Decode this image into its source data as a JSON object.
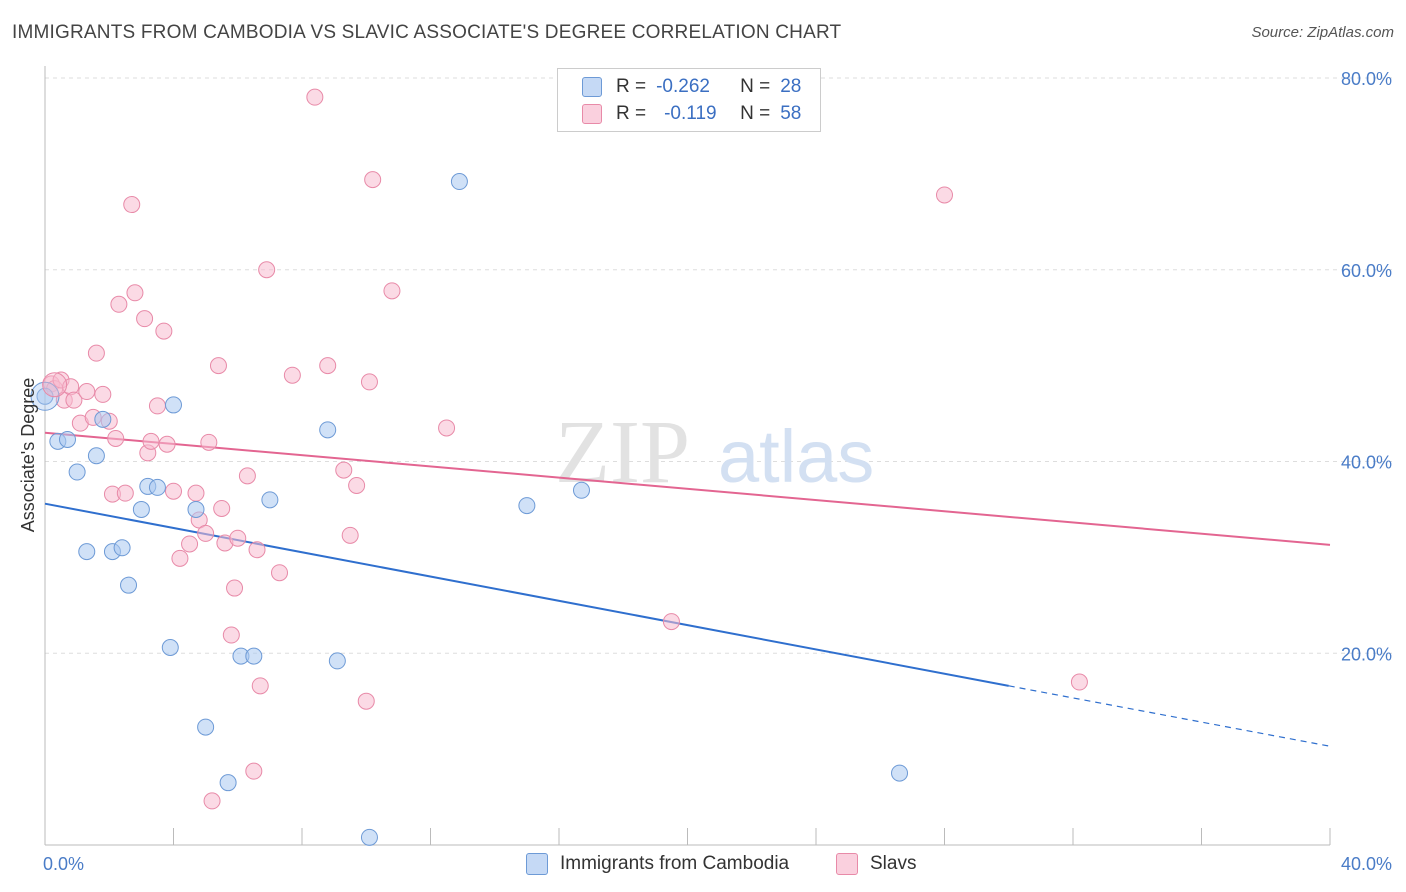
{
  "header": {
    "title": "IMMIGRANTS FROM CAMBODIA VS SLAVIC ASSOCIATE'S DEGREE CORRELATION CHART",
    "source": "Source: ZipAtlas.com"
  },
  "legend": {
    "r_label": "R =",
    "n_label": "N =",
    "rows": [
      {
        "r": "-0.262",
        "n": "28"
      },
      {
        "r": "-0.119",
        "n": "58"
      }
    ]
  },
  "watermark": {
    "zip": "ZIP",
    "atlas": "atlas"
  },
  "colors": {
    "blue_fill": "#aac8f0",
    "blue_stroke": "#6d9ad6",
    "blue_line": "#2f6fce",
    "pink_fill": "#f7bcd0",
    "pink_stroke": "#e88aa8",
    "pink_line": "#e36591",
    "tick_text": "#4a7cc7",
    "grid": "#dddddd"
  },
  "chart_data": {
    "type": "scatter",
    "title": "IMMIGRANTS FROM CAMBODIA VS SLAVIC ASSOCIATE'S DEGREE CORRELATION CHART",
    "xlabel": "",
    "ylabel": "Associate's Degree",
    "xlim": [
      0,
      40
    ],
    "ylim": [
      0,
      80
    ],
    "x_tick_labels": [
      "0.0%",
      "40.0%"
    ],
    "y_ticks": [
      20,
      40,
      60,
      80
    ],
    "y_tick_labels": [
      "20.0%",
      "40.0%",
      "60.0%",
      "80.0%"
    ],
    "grid": true,
    "legend_position": "bottom",
    "series": [
      {
        "name": "Immigrants from Cambodia",
        "color": "#aac8f0",
        "trend": {
          "x": [
            0,
            30
          ],
          "y": [
            35.6,
            16.6
          ],
          "dashed_to": [
            40,
            10.3
          ]
        },
        "points": [
          [
            0.0,
            46.8
          ],
          [
            0.4,
            42.1
          ],
          [
            0.7,
            42.3
          ],
          [
            1.0,
            38.9
          ],
          [
            1.3,
            30.6
          ],
          [
            1.6,
            40.6
          ],
          [
            1.8,
            44.4
          ],
          [
            2.1,
            30.6
          ],
          [
            2.4,
            31.0
          ],
          [
            2.6,
            27.1
          ],
          [
            3.0,
            35.0
          ],
          [
            3.2,
            37.4
          ],
          [
            3.5,
            37.3
          ],
          [
            3.9,
            20.6
          ],
          [
            4.0,
            45.9
          ],
          [
            4.7,
            35.0
          ],
          [
            5.0,
            12.3
          ],
          [
            5.7,
            6.5
          ],
          [
            6.1,
            19.7
          ],
          [
            6.5,
            19.7
          ],
          [
            7.0,
            36.0
          ],
          [
            8.8,
            43.3
          ],
          [
            9.1,
            19.2
          ],
          [
            10.1,
            0.8
          ],
          [
            12.9,
            69.2
          ],
          [
            15.0,
            35.4
          ],
          [
            16.7,
            37.0
          ],
          [
            26.6,
            7.5
          ]
        ]
      },
      {
        "name": "Slavs",
        "color": "#f7bcd0",
        "trend": {
          "x": [
            0,
            40
          ],
          "y": [
            43.0,
            31.3
          ]
        },
        "points": [
          [
            0.2,
            48.1
          ],
          [
            0.3,
            47.6
          ],
          [
            0.5,
            48.5
          ],
          [
            0.6,
            46.4
          ],
          [
            0.8,
            47.8
          ],
          [
            0.9,
            46.4
          ],
          [
            1.1,
            44.0
          ],
          [
            1.3,
            47.3
          ],
          [
            1.5,
            44.6
          ],
          [
            1.6,
            51.3
          ],
          [
            1.8,
            47.0
          ],
          [
            2.0,
            44.2
          ],
          [
            2.1,
            36.6
          ],
          [
            2.2,
            42.4
          ],
          [
            2.3,
            56.4
          ],
          [
            2.5,
            36.7
          ],
          [
            2.7,
            66.8
          ],
          [
            2.8,
            57.6
          ],
          [
            3.1,
            54.9
          ],
          [
            3.2,
            40.9
          ],
          [
            3.3,
            42.1
          ],
          [
            3.5,
            45.8
          ],
          [
            3.7,
            53.6
          ],
          [
            3.8,
            41.8
          ],
          [
            4.0,
            36.9
          ],
          [
            4.2,
            29.9
          ],
          [
            4.5,
            31.4
          ],
          [
            4.7,
            36.7
          ],
          [
            4.8,
            33.9
          ],
          [
            5.0,
            32.5
          ],
          [
            5.1,
            42.0
          ],
          [
            5.2,
            4.6
          ],
          [
            5.4,
            50.0
          ],
          [
            5.5,
            35.1
          ],
          [
            5.6,
            31.5
          ],
          [
            5.8,
            21.9
          ],
          [
            5.9,
            26.8
          ],
          [
            6.0,
            32.0
          ],
          [
            6.3,
            38.5
          ],
          [
            6.5,
            7.7
          ],
          [
            6.6,
            30.8
          ],
          [
            6.7,
            16.6
          ],
          [
            6.9,
            60.0
          ],
          [
            7.3,
            28.4
          ],
          [
            7.7,
            49.0
          ],
          [
            8.4,
            78.0
          ],
          [
            8.8,
            50.0
          ],
          [
            9.3,
            39.1
          ],
          [
            9.5,
            32.3
          ],
          [
            9.7,
            37.5
          ],
          [
            10.0,
            15.0
          ],
          [
            10.1,
            48.3
          ],
          [
            10.2,
            69.4
          ],
          [
            10.8,
            57.8
          ],
          [
            12.5,
            43.5
          ],
          [
            19.5,
            23.3
          ],
          [
            28.0,
            67.8
          ],
          [
            32.2,
            17.0
          ]
        ]
      }
    ]
  }
}
